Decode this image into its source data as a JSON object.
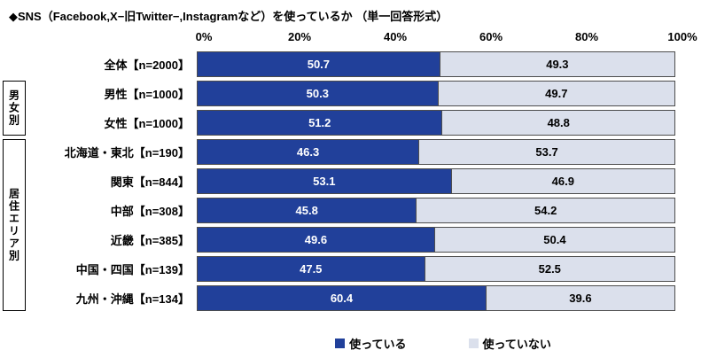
{
  "title": "◆SNS（Facebook,X−旧Twitter−,Instagramなど）を使っているか （単一回答形式）",
  "colors": {
    "used": "#21409a",
    "not_used": "#dbe0ec",
    "bar_border": "#4d4d4d"
  },
  "chart_data": {
    "type": "bar",
    "orientation": "horizontal",
    "stacked": true,
    "title": "◆SNS（Facebook,X−旧Twitter−,Instagramなど）を使っているか （単一回答形式）",
    "xlim": [
      0,
      100
    ],
    "x_ticks": [
      "0%",
      "20%",
      "40%",
      "60%",
      "80%",
      "100%"
    ],
    "categories": [
      "全体【n=2000】",
      "男性【n=1000】",
      "女性【n=1000】",
      "北海道・東北【n=190】",
      "関東【n=844】",
      "中部【n=308】",
      "近畿【n=385】",
      "中国・四国【n=139】",
      "九州・沖縄【n=134】"
    ],
    "series": [
      {
        "name": "使っている",
        "color": "#21409a",
        "text_color": "#ffffff",
        "values": [
          50.7,
          50.3,
          51.2,
          46.3,
          53.1,
          45.8,
          49.6,
          47.5,
          60.4
        ]
      },
      {
        "name": "使っていない",
        "color": "#dbe0ec",
        "text_color": "#000000",
        "values": [
          49.3,
          49.7,
          48.8,
          53.7,
          46.9,
          54.2,
          50.4,
          52.5,
          39.6
        ]
      }
    ],
    "groups": [
      {
        "label": "男女別",
        "start_row": 1,
        "row_count": 2
      },
      {
        "label": "居住エリア別",
        "start_row": 3,
        "row_count": 6
      }
    ],
    "legend_position": "bottom",
    "grid": false
  }
}
